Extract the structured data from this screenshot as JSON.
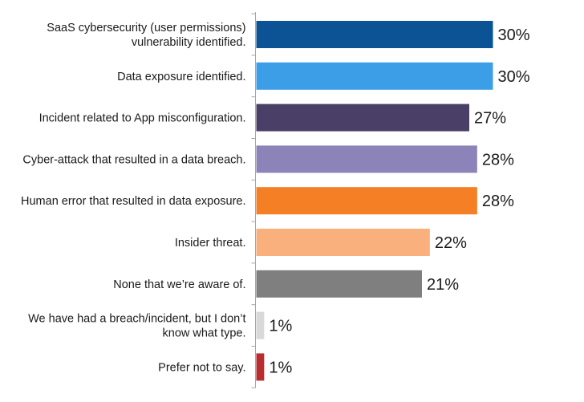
{
  "chart_data": {
    "type": "bar",
    "orientation": "horizontal",
    "title": "",
    "xlabel": "",
    "ylabel": "",
    "xlim": [
      0,
      30
    ],
    "grid": false,
    "legend": "none",
    "value_suffix": "%",
    "categories": [
      [
        "SaaS cybersecurity (user permissions)",
        "vulnerability identified."
      ],
      [
        "Data exposure identified."
      ],
      [
        "Incident related to App misconfiguration."
      ],
      [
        "Cyber-attack that resulted in a data breach."
      ],
      [
        "Human error that resulted in data exposure."
      ],
      [
        "Insider threat."
      ],
      [
        "None that we’re aware of."
      ],
      [
        "We have had a breach/incident, but I don’t",
        "know what type."
      ],
      [
        "Prefer not to say."
      ]
    ],
    "values": [
      30,
      30,
      27,
      28,
      28,
      22,
      21,
      1,
      1
    ],
    "colors": [
      "#0b5394",
      "#3d9ee8",
      "#4a3f66",
      "#8c84b8",
      "#f47f24",
      "#f9b07c",
      "#7f7f7f",
      "#d9d9d9",
      "#b72d30"
    ],
    "axis_color": "#a6a6a6"
  }
}
